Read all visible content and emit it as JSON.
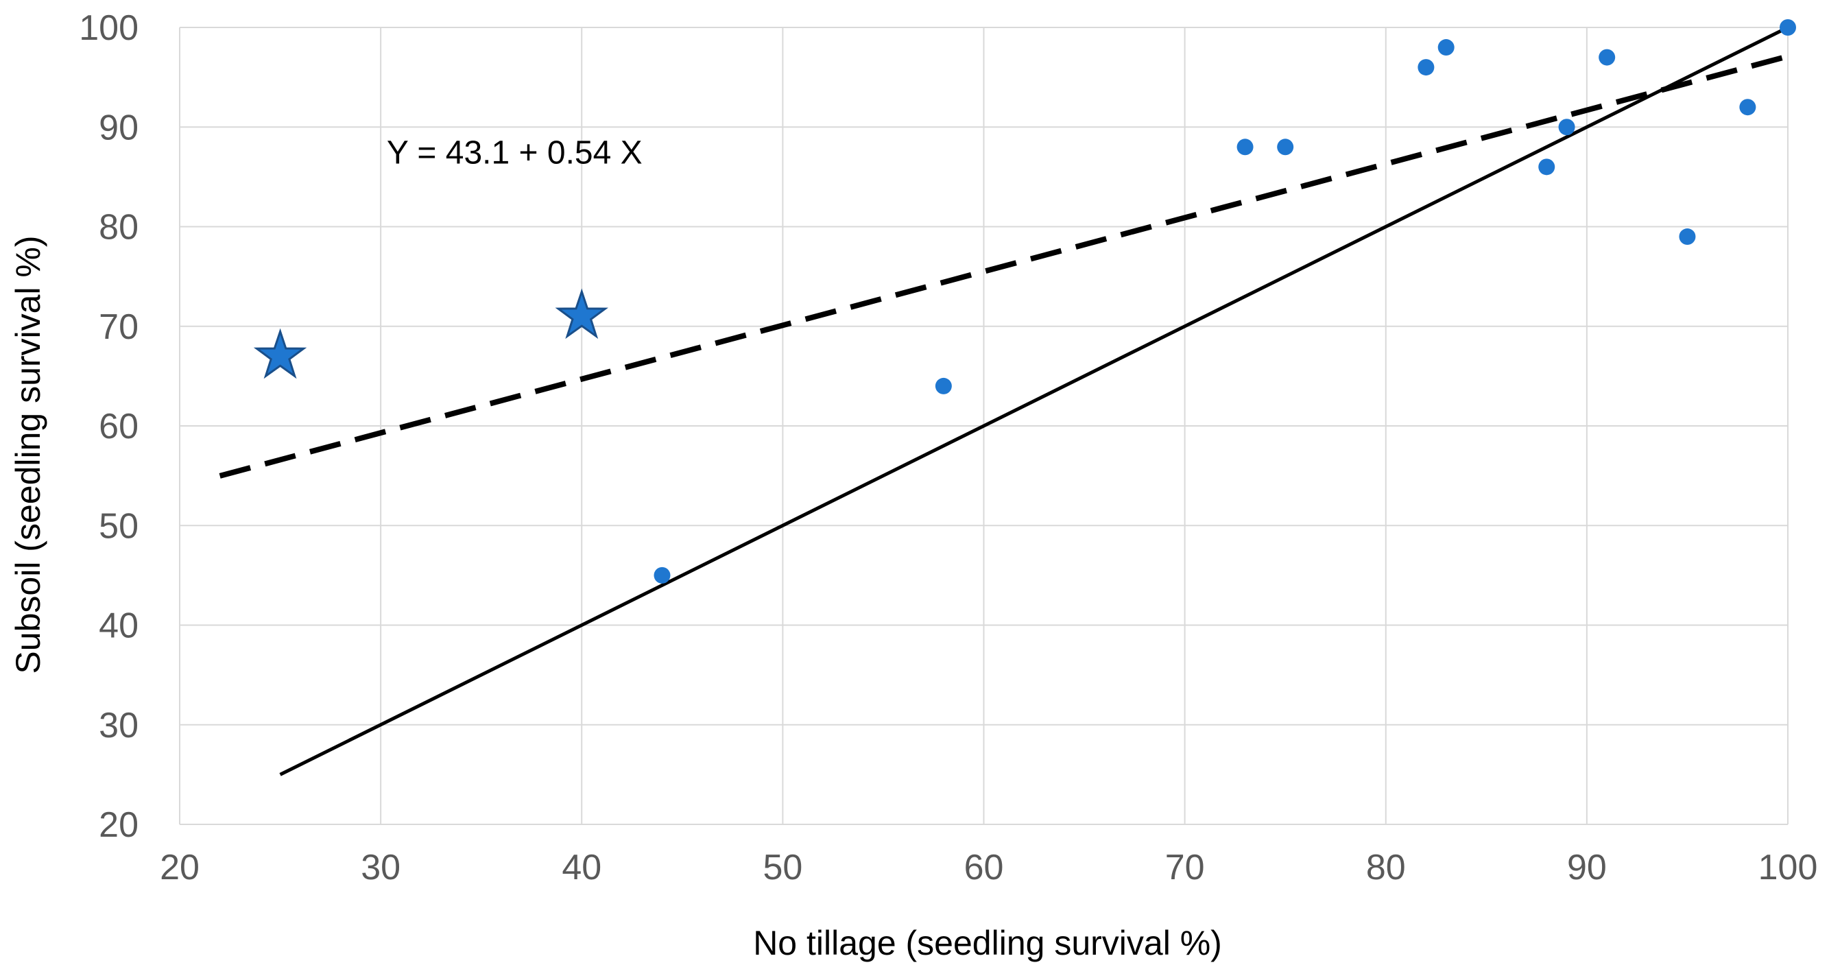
{
  "chart_data": {
    "type": "scatter",
    "title": "",
    "xlabel": "No tillage (seedling survival %)",
    "ylabel": "Subsoil (seedling survival %)",
    "xlim": [
      20,
      100
    ],
    "ylim": [
      20,
      100
    ],
    "x_ticks": [
      20,
      30,
      40,
      50,
      60,
      70,
      80,
      90,
      100
    ],
    "y_ticks": [
      20,
      30,
      40,
      50,
      60,
      70,
      80,
      90,
      100
    ],
    "x_tick_labels": [
      "20",
      "30",
      "40",
      "50",
      "60",
      "70",
      "80",
      "90",
      "100"
    ],
    "y_tick_labels": [
      "20",
      "30",
      "40",
      "50",
      "60",
      "70",
      "80",
      "90",
      "100"
    ],
    "grid": true,
    "legend": "none",
    "colors": {
      "points": "#1f77d0",
      "star_outline": "#1a4f8a",
      "lines": "#000000",
      "grid": "#d9d9d9"
    },
    "series": [
      {
        "marker": "circle",
        "points": [
          {
            "x": 44,
            "y": 45
          },
          {
            "x": 58,
            "y": 64
          },
          {
            "x": 73,
            "y": 88
          },
          {
            "x": 75,
            "y": 88
          },
          {
            "x": 82,
            "y": 96
          },
          {
            "x": 83,
            "y": 98
          },
          {
            "x": 88,
            "y": 86
          },
          {
            "x": 89,
            "y": 90
          },
          {
            "x": 91,
            "y": 97
          },
          {
            "x": 95,
            "y": 79
          },
          {
            "x": 98,
            "y": 92
          },
          {
            "x": 100,
            "y": 100
          }
        ]
      },
      {
        "marker": "star",
        "points": [
          {
            "x": 25,
            "y": 67
          },
          {
            "x": 40,
            "y": 71
          }
        ]
      }
    ],
    "lines": [
      {
        "style": "dashed",
        "kind": "regression",
        "intercept": 43.1,
        "slope": 0.54,
        "x_range": [
          22,
          100
        ]
      },
      {
        "style": "solid",
        "kind": "1:1 line",
        "intercept": 0,
        "slope": 1,
        "x_range": [
          25,
          100
        ]
      }
    ],
    "annotations": [
      {
        "text": "Y = 43.1 + 0.54 X",
        "x": 30.3,
        "y": 87.5
      }
    ]
  }
}
